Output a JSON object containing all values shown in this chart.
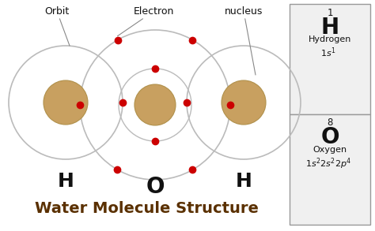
{
  "bg_color": "#ffffff",
  "nucleus_fill": "#c8a060",
  "nucleus_edge": "#b0904a",
  "orbit_color": "#bbbbbb",
  "outer_circle_color": "#bbbbbb",
  "electron_color": "#cc0000",
  "label_color": "#111111",
  "title_color": "#5a3000",
  "periodic_bg": "#f0f0f0",
  "periodic_border": "#999999",
  "h_label": "H",
  "o_label": "O",
  "title_text": "Water Molecule Structure",
  "orbit_label": "Orbit",
  "electron_label": "Electron",
  "nucleus_label": "nucleus",
  "h_number": "1",
  "h_element": "H",
  "h_name": "Hydrogen",
  "o_number": "8",
  "o_element": "O",
  "o_name": "Oxygen",
  "figw": 4.74,
  "figh": 2.93,
  "dpi": 100
}
